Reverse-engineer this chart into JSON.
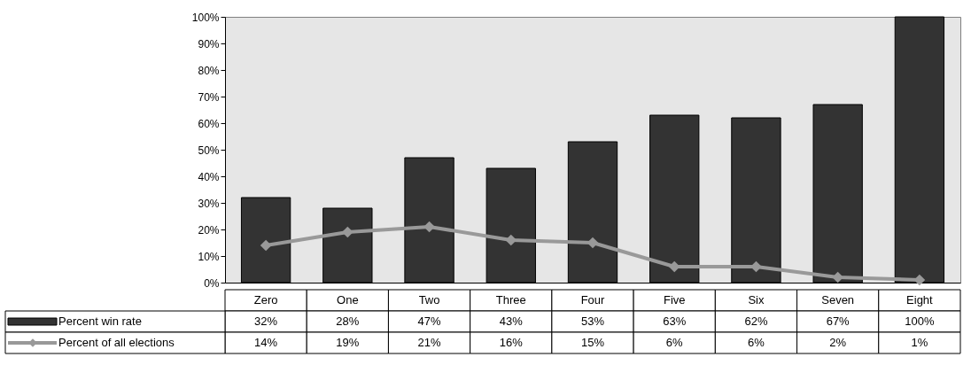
{
  "chart_data": {
    "type": "bar",
    "categories": [
      "Zero",
      "One",
      "Two",
      "Three",
      "Four",
      "Five",
      "Six",
      "Seven",
      "Eight"
    ],
    "series": [
      {
        "name": "Percent win rate",
        "color": "#333333",
        "values": [
          32,
          28,
          47,
          43,
          53,
          63,
          62,
          67,
          100
        ],
        "value_labels": [
          "32%",
          "28%",
          "47%",
          "43%",
          "53%",
          "63%",
          "62%",
          "67%",
          "100%"
        ]
      },
      {
        "name": "Percent of all elections",
        "type": "line",
        "color": "#999999",
        "marker": "diamond",
        "values": [
          14,
          19,
          21,
          16,
          15,
          6,
          6,
          2,
          1
        ],
        "value_labels": [
          "14%",
          "19%",
          "21%",
          "16%",
          "15%",
          "6%",
          "6%",
          "2%",
          "1%"
        ]
      }
    ],
    "ylim": [
      0,
      100
    ],
    "yticks": [
      {
        "value": 0,
        "label": "0%"
      },
      {
        "value": 10,
        "label": "10%"
      },
      {
        "value": 20,
        "label": "20%"
      },
      {
        "value": 30,
        "label": "30%"
      },
      {
        "value": 40,
        "label": "40%"
      },
      {
        "value": 50,
        "label": "50%"
      },
      {
        "value": 60,
        "label": "60%"
      },
      {
        "value": 70,
        "label": "70%"
      },
      {
        "value": 80,
        "label": "80%"
      },
      {
        "value": 90,
        "label": "90%"
      },
      {
        "value": 100,
        "label": "100%"
      }
    ],
    "legend": "bottom"
  }
}
